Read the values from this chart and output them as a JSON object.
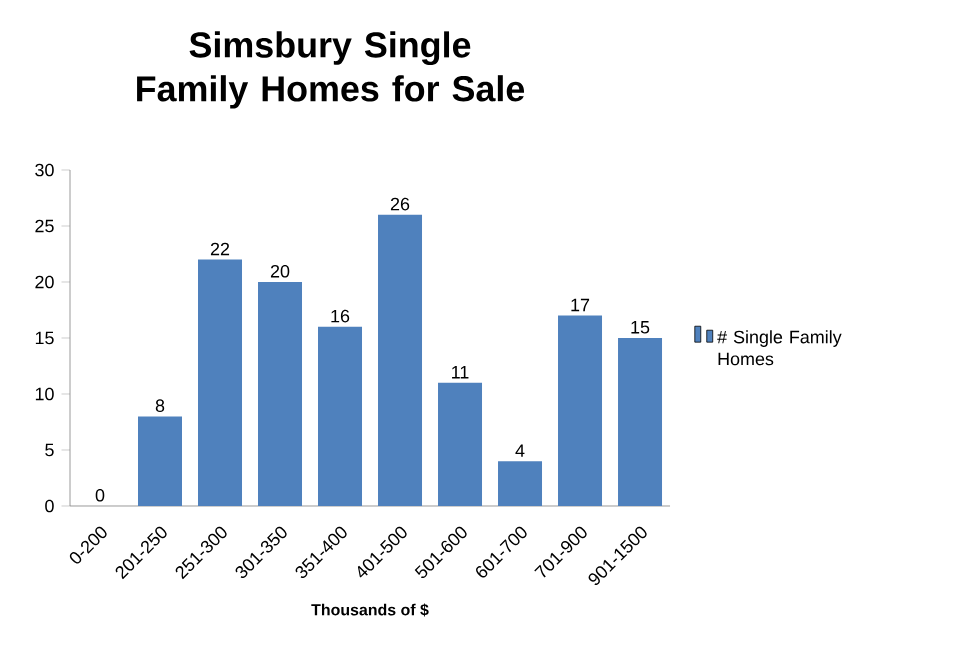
{
  "chart_data": {
    "type": "bar",
    "title": "Simsbury Single Family Homes for Sale",
    "xlabel": "Thousands of $",
    "categories": [
      "0-200",
      "201-250",
      "251-300",
      "301-350",
      "351-400",
      "401-500",
      "501-600",
      "601-700",
      "701-900",
      "901-1500"
    ],
    "series": [
      {
        "name": "# Single Family Homes",
        "color": "#4f81bd",
        "values": [
          0,
          8,
          22,
          20,
          16,
          26,
          11,
          4,
          17,
          15
        ]
      }
    ],
    "ylim": [
      0,
      30
    ],
    "yticks": [
      0,
      5,
      10,
      15,
      20,
      25,
      30
    ],
    "grid": false,
    "legend": "right",
    "data_labels": true
  }
}
